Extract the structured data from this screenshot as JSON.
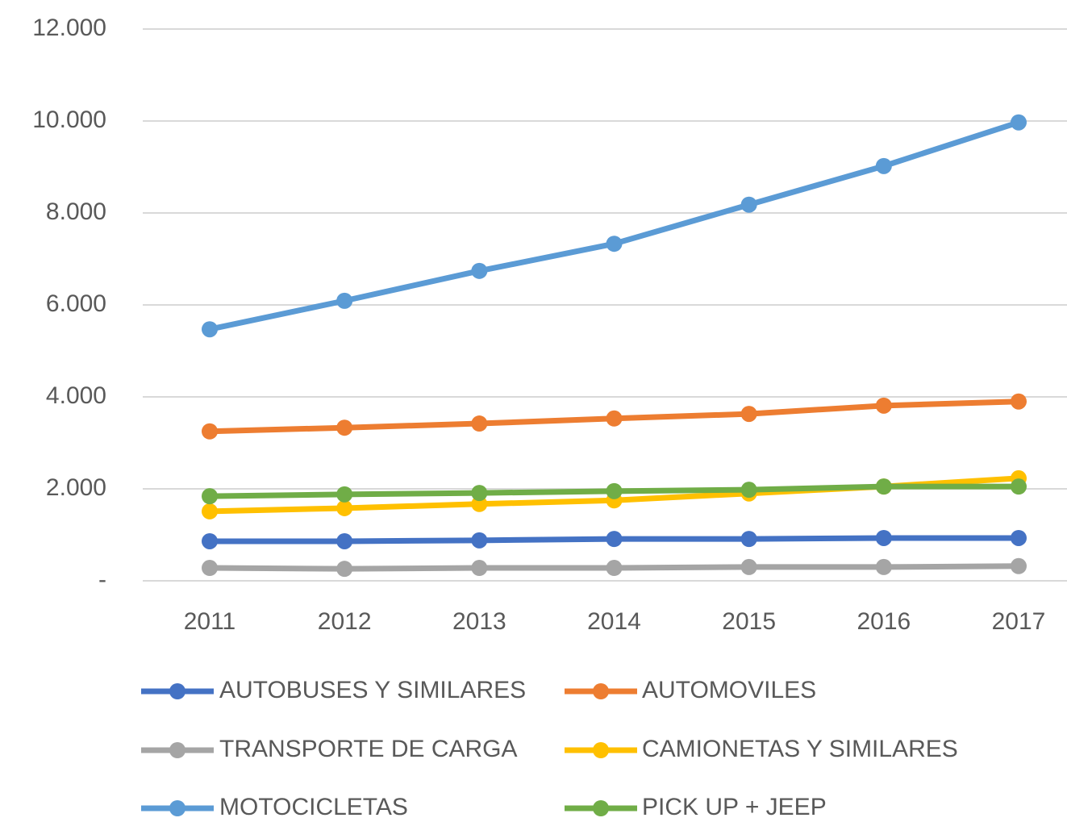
{
  "chart_data": {
    "type": "line",
    "categories": [
      "2011",
      "2012",
      "2013",
      "2014",
      "2015",
      "2016",
      "2017"
    ],
    "series": [
      {
        "name": "AUTOBUSES Y SIMILARES",
        "color": "#4472c4",
        "values": [
          860,
          860,
          880,
          910,
          910,
          930,
          930
        ]
      },
      {
        "name": "AUTOMOVILES",
        "color": "#ed7d31",
        "values": [
          3250,
          3330,
          3420,
          3530,
          3630,
          3810,
          3900
        ]
      },
      {
        "name": "TRANSPORTE DE CARGA",
        "color": "#a5a5a5",
        "values": [
          280,
          260,
          280,
          280,
          300,
          300,
          320
        ]
      },
      {
        "name": "CAMIONETAS Y SIMILARES",
        "color": "#ffc000",
        "values": [
          1510,
          1580,
          1670,
          1750,
          1900,
          2050,
          2230
        ]
      },
      {
        "name": "MOTOCICLETAS",
        "color": "#5b9bd5",
        "values": [
          5470,
          6090,
          6740,
          7330,
          8180,
          9020,
          9970
        ]
      },
      {
        "name": "PICK UP + JEEP",
        "color": "#70ad47",
        "values": [
          1840,
          1880,
          1910,
          1950,
          1980,
          2050,
          2050
        ]
      }
    ],
    "ylim": [
      0,
      12000
    ],
    "yticks": [
      {
        "value": 0,
        "label": "-"
      },
      {
        "value": 2000,
        "label": "2.000"
      },
      {
        "value": 4000,
        "label": "4.000"
      },
      {
        "value": 6000,
        "label": "6.000"
      },
      {
        "value": 8000,
        "label": "8.000"
      },
      {
        "value": 10000,
        "label": "10.000"
      },
      {
        "value": 12000,
        "label": "12.000"
      }
    ],
    "grid": true,
    "legend": "bottom"
  }
}
